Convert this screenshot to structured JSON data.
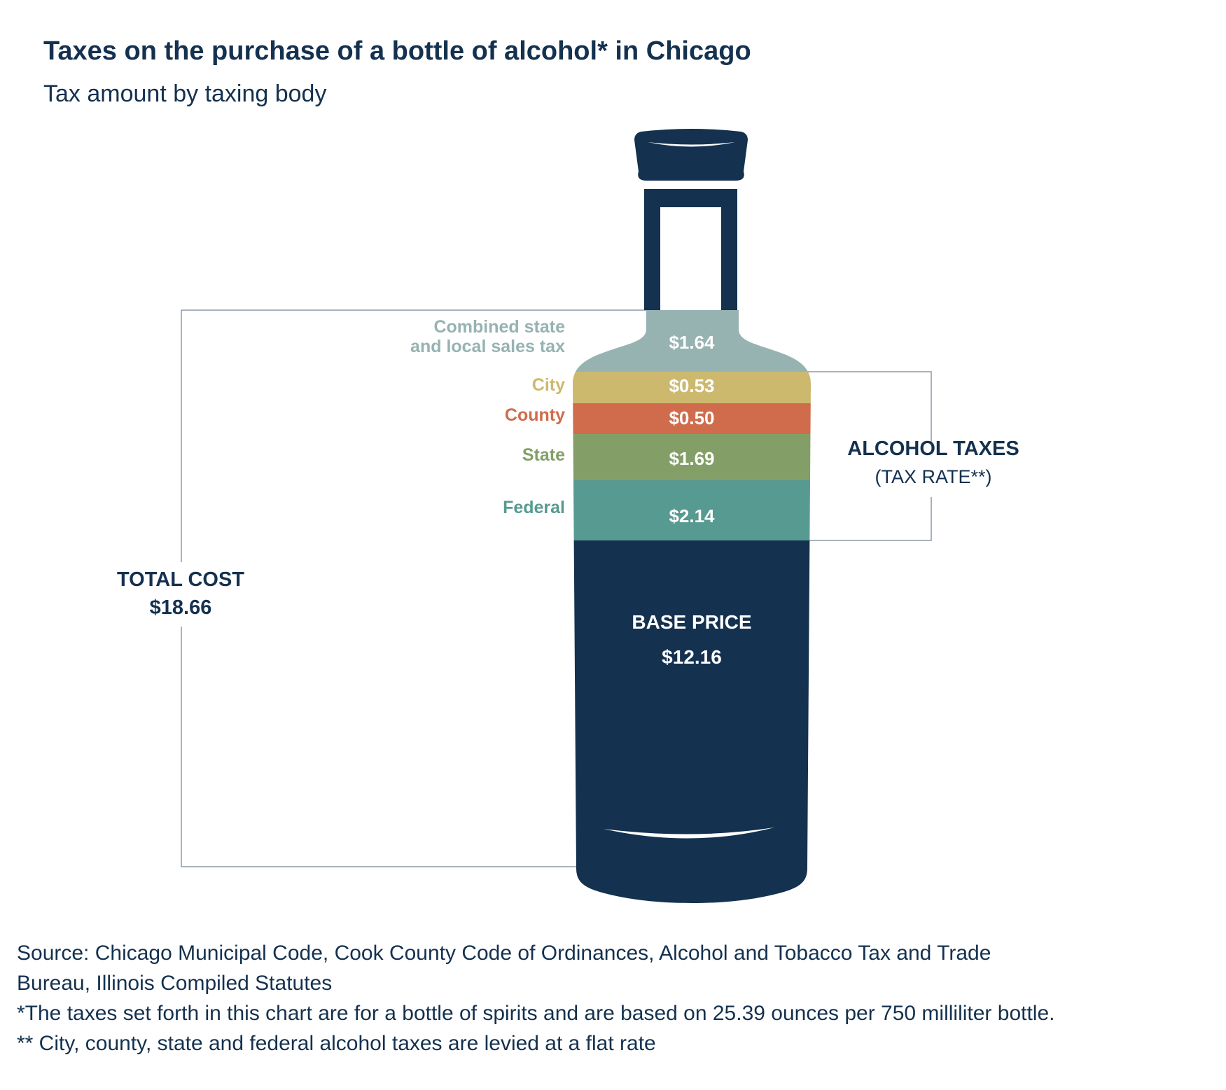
{
  "title": "Taxes on the purchase of a bottle of alcohol* in Chicago",
  "subtitle": "Tax amount by taxing body",
  "chart_data": {
    "type": "bar",
    "orientation": "stacked-vertical-pictogram",
    "title": "Taxes on the purchase of a bottle of alcohol* in Chicago",
    "subtitle": "Tax amount by taxing body",
    "unit": "$",
    "segments": [
      {
        "name": "Combined state and local sales tax",
        "label_lines": [
          "Combined state",
          "and local sales tax"
        ],
        "value": 1.64,
        "value_label": "$1.64",
        "color": "#96b3b2"
      },
      {
        "name": "City",
        "label_lines": [
          "City"
        ],
        "value": 0.53,
        "value_label": "$0.53",
        "color": "#ccb96e"
      },
      {
        "name": "County",
        "label_lines": [
          "County"
        ],
        "value": 0.5,
        "value_label": "$0.50",
        "color": "#d06c4b"
      },
      {
        "name": "State",
        "label_lines": [
          "State"
        ],
        "value": 1.69,
        "value_label": "$1.69",
        "color": "#839f67"
      },
      {
        "name": "Federal",
        "label_lines": [
          "Federal"
        ],
        "value": 2.14,
        "value_label": "$2.14",
        "color": "#579a91"
      }
    ],
    "base_price": {
      "label": "BASE PRICE",
      "value": 12.16,
      "value_label": "$12.16",
      "color": "#14314f"
    },
    "total": {
      "label": "TOTAL COST",
      "value": 18.66,
      "value_label": "$18.66"
    },
    "alcohol_taxes_bracket": {
      "label": "ALCOHOL TAXES",
      "sublabel": "(TAX RATE**)",
      "covers": [
        "City",
        "County",
        "State",
        "Federal"
      ]
    }
  },
  "notes": [
    "Source: Chicago Municipal Code, Cook County Code of Ordinances, Alcohol and Tobacco Tax and Trade",
    "Bureau, Illinois Compiled Statutes",
    "*The taxes set forth in this chart are for a bottle of spirits and are based on 25.39 ounces per 750 milliliter bottle.",
    "** City, county, state and federal alcohol taxes are levied at a flat rate"
  ]
}
